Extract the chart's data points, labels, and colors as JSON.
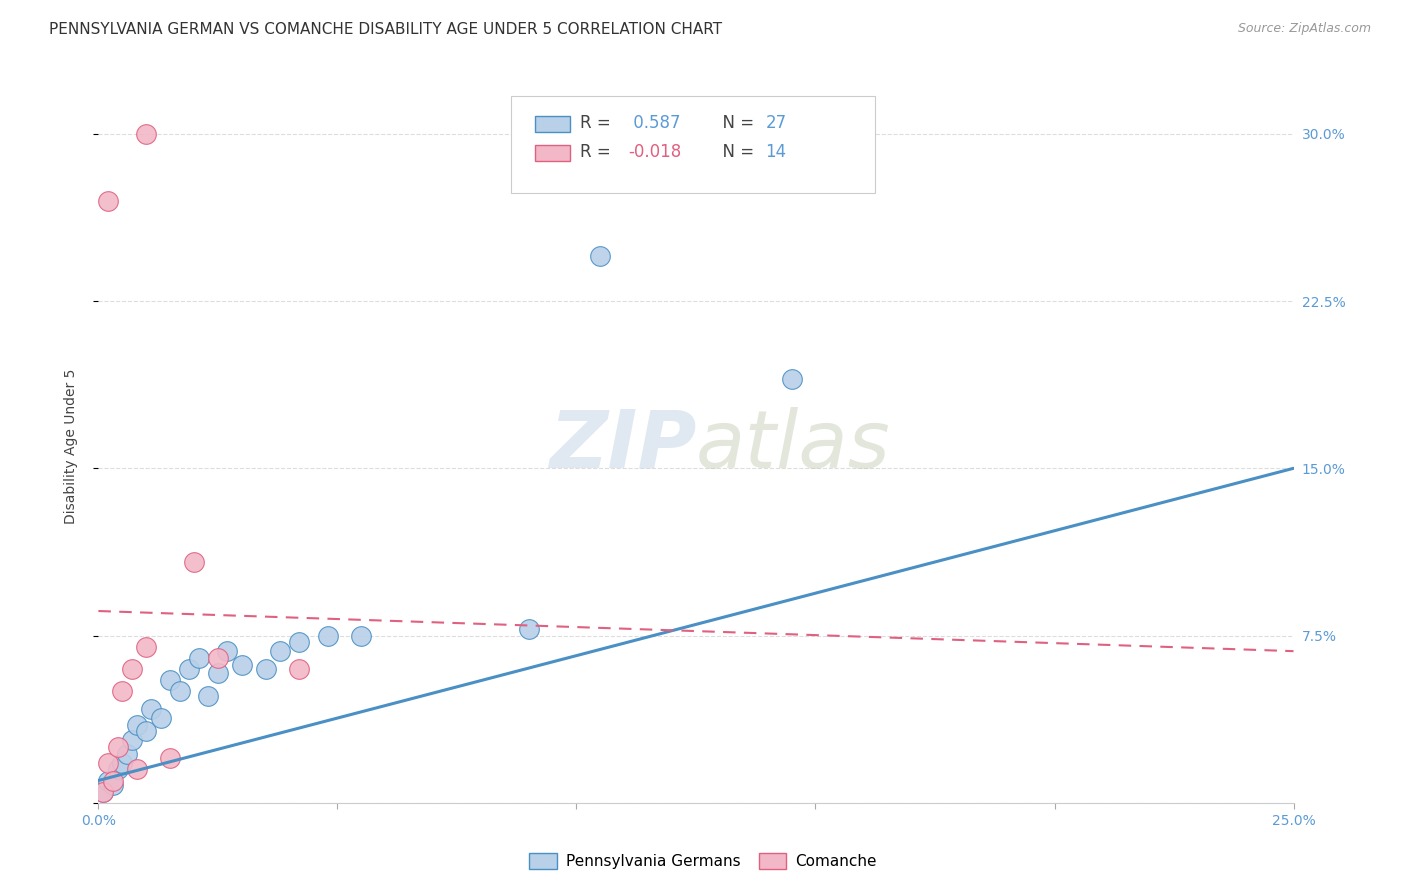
{
  "title": "PENNSYLVANIA GERMAN VS COMANCHE DISABILITY AGE UNDER 5 CORRELATION CHART",
  "source": "Source: ZipAtlas.com",
  "ylabel": "Disability Age Under 5",
  "xlim": [
    0.0,
    0.25
  ],
  "ylim": [
    0.0,
    0.32
  ],
  "xticks": [
    0.0,
    0.05,
    0.1,
    0.15,
    0.2,
    0.25
  ],
  "yticks": [
    0.0,
    0.075,
    0.15,
    0.225,
    0.3
  ],
  "ytick_labels": [
    "",
    "7.5%",
    "15.0%",
    "22.5%",
    "30.0%"
  ],
  "xtick_labels": [
    "0.0%",
    "",
    "",
    "",
    "",
    "25.0%"
  ],
  "blue_label": "Pennsylvania Germans",
  "pink_label": "Comanche",
  "blue_r": "0.587",
  "blue_n": "27",
  "pink_r": "-0.018",
  "pink_n": "14",
  "blue_color": "#b8d0e8",
  "pink_color": "#f2b8c8",
  "blue_line_color": "#4a90c4",
  "pink_line_color": "#e06080",
  "blue_scatter_x": [
    0.001,
    0.002,
    0.003,
    0.004,
    0.005,
    0.006,
    0.007,
    0.008,
    0.01,
    0.011,
    0.013,
    0.015,
    0.017,
    0.019,
    0.021,
    0.023,
    0.025,
    0.027,
    0.03,
    0.035,
    0.038,
    0.042,
    0.048,
    0.055,
    0.09,
    0.105,
    0.145
  ],
  "blue_scatter_y": [
    0.005,
    0.01,
    0.008,
    0.015,
    0.018,
    0.022,
    0.028,
    0.035,
    0.032,
    0.042,
    0.038,
    0.055,
    0.05,
    0.06,
    0.065,
    0.048,
    0.058,
    0.068,
    0.062,
    0.06,
    0.068,
    0.072,
    0.075,
    0.075,
    0.078,
    0.245,
    0.19
  ],
  "pink_scatter_x": [
    0.001,
    0.002,
    0.003,
    0.004,
    0.005,
    0.007,
    0.008,
    0.01,
    0.015,
    0.02,
    0.025,
    0.042,
    0.002,
    0.01
  ],
  "pink_scatter_y": [
    0.005,
    0.018,
    0.01,
    0.025,
    0.05,
    0.06,
    0.015,
    0.07,
    0.02,
    0.108,
    0.065,
    0.06,
    0.27,
    0.3
  ],
  "blue_trendline_x": [
    0.0,
    0.25
  ],
  "blue_trendline_y": [
    0.01,
    0.15
  ],
  "pink_trendline_x": [
    0.0,
    0.25
  ],
  "pink_trendline_y": [
    0.086,
    0.068
  ],
  "background_color": "#ffffff",
  "grid_color": "#dddddd",
  "watermark_zip": "ZIP",
  "watermark_atlas": "atlas",
  "title_fontsize": 11,
  "axis_label_fontsize": 10,
  "tick_fontsize": 10,
  "legend_fontsize": 12
}
